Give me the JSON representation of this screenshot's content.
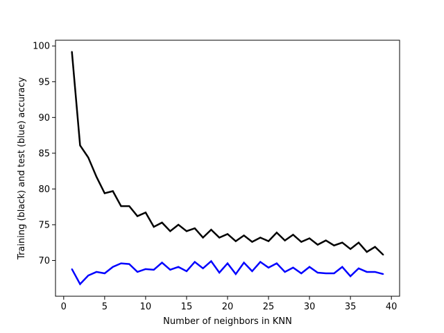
{
  "chart_data": {
    "type": "line",
    "title": "",
    "xlabel": "Number of neighbors in KNN",
    "ylabel": "Training (black) and test (blue) accuracy",
    "xlim": [
      -1,
      41
    ],
    "ylim": [
      65,
      100.8
    ],
    "xticks": [
      0,
      5,
      10,
      15,
      20,
      25,
      30,
      35,
      40
    ],
    "yticks": [
      70,
      75,
      80,
      85,
      90,
      95,
      100
    ],
    "grid": false,
    "legend": "none",
    "x": [
      1,
      2,
      3,
      4,
      5,
      6,
      7,
      8,
      9,
      10,
      11,
      12,
      13,
      14,
      15,
      16,
      17,
      18,
      19,
      20,
      21,
      22,
      23,
      24,
      25,
      26,
      27,
      28,
      29,
      30,
      31,
      32,
      33,
      34,
      35,
      36,
      37,
      38,
      39
    ],
    "series": [
      {
        "color": "#000000",
        "values": [
          99.2,
          86.1,
          84.4,
          81.7,
          79.4,
          79.7,
          77.6,
          77.6,
          76.2,
          76.7,
          74.7,
          75.3,
          74.1,
          75.0,
          74.1,
          74.5,
          73.2,
          74.3,
          73.2,
          73.7,
          72.7,
          73.5,
          72.6,
          73.2,
          72.7,
          73.9,
          72.8,
          73.6,
          72.6,
          73.1,
          72.2,
          72.8,
          72.1,
          72.5,
          71.6,
          72.5,
          71.2,
          71.9,
          70.8
        ]
      },
      {
        "color": "#0000ff",
        "values": [
          68.8,
          66.7,
          67.9,
          68.4,
          68.2,
          69.1,
          69.6,
          69.5,
          68.4,
          68.8,
          68.7,
          69.7,
          68.7,
          69.1,
          68.5,
          69.8,
          68.9,
          69.9,
          68.3,
          69.6,
          68.1,
          69.7,
          68.5,
          69.8,
          69.0,
          69.6,
          68.4,
          69.0,
          68.2,
          69.1,
          68.3,
          68.2,
          68.2,
          69.1,
          67.8,
          68.9,
          68.4,
          68.4,
          68.1
        ]
      }
    ]
  }
}
